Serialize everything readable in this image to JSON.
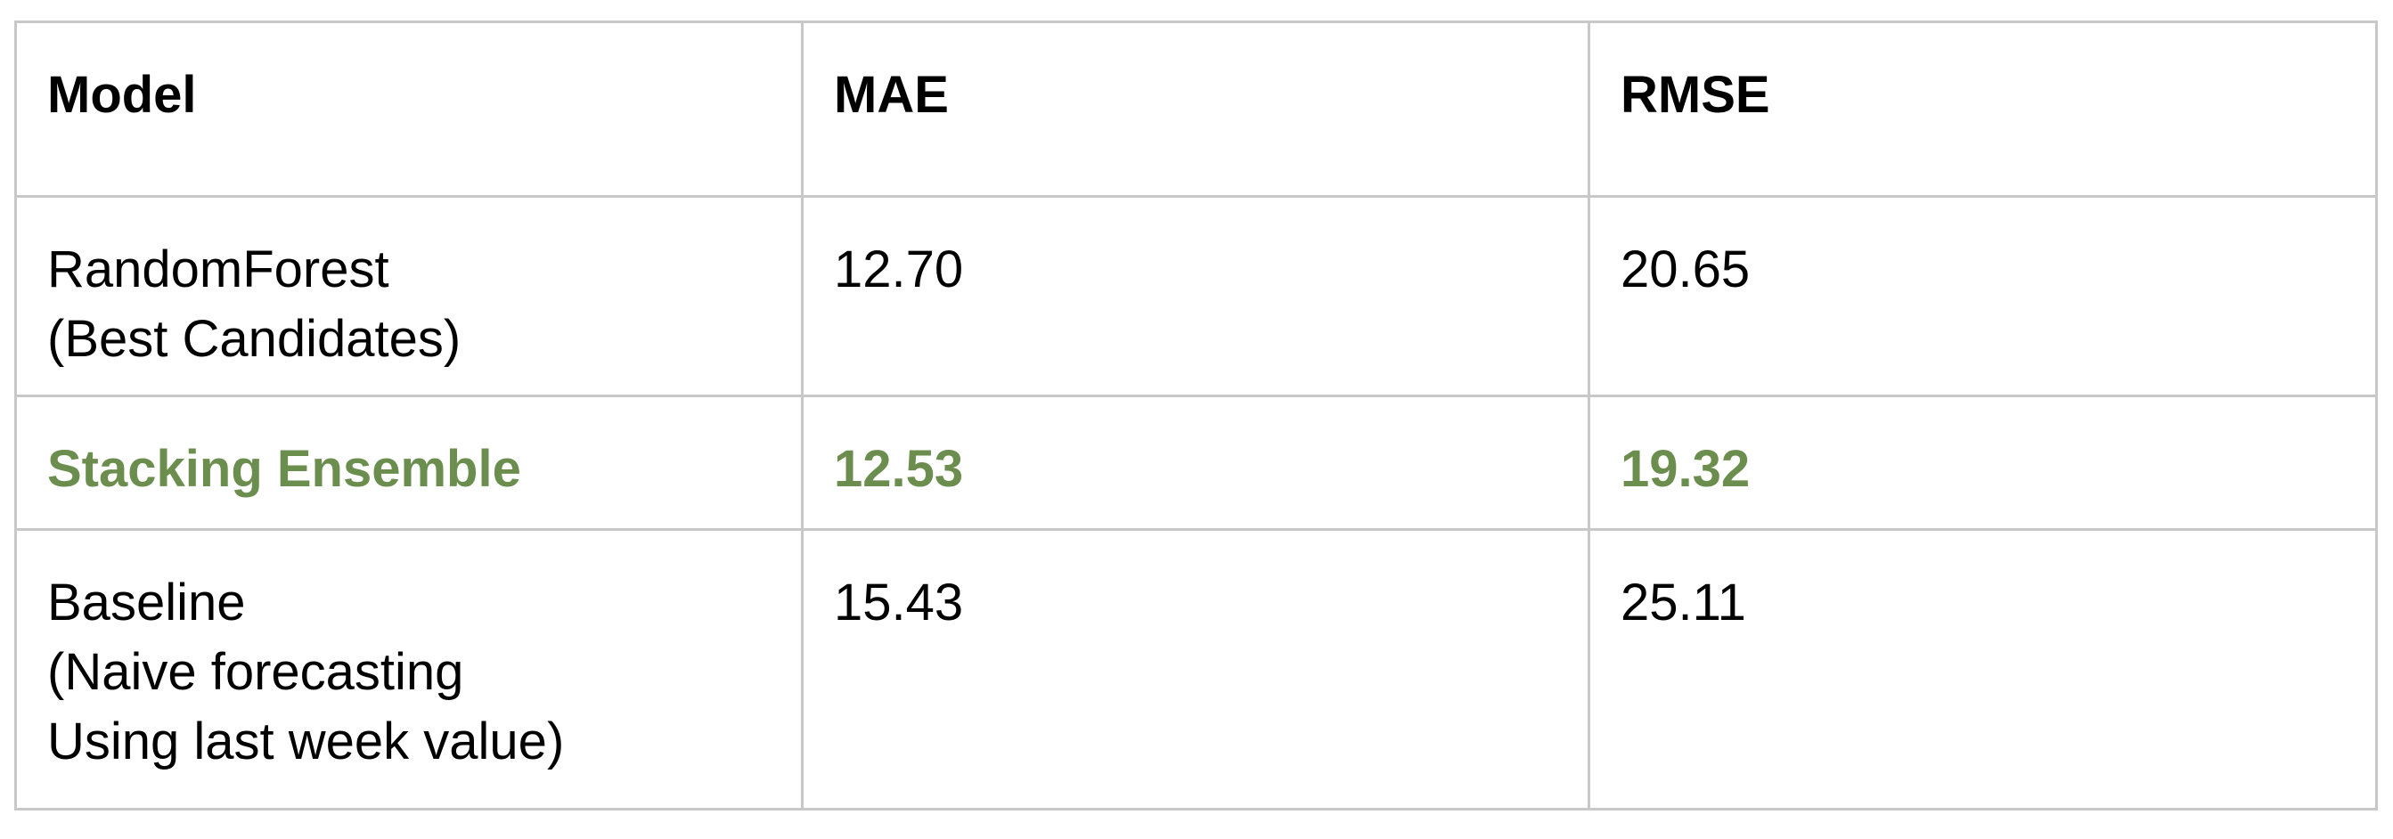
{
  "table": {
    "headers": [
      "Model",
      "MAE",
      "RMSE"
    ],
    "rows": [
      {
        "model": "RandomForest\n(Best Candidates)",
        "mae": "12.70",
        "rmse": "20.65",
        "highlight": false
      },
      {
        "model": "Stacking Ensemble",
        "mae": "12.53",
        "rmse": "19.32",
        "highlight": true
      },
      {
        "model": "Baseline\n(Naive forecasting\nUsing last week value)",
        "mae": "15.43",
        "rmse": "25.11",
        "highlight": false
      }
    ],
    "highlight_color": "#6b8e4e"
  }
}
